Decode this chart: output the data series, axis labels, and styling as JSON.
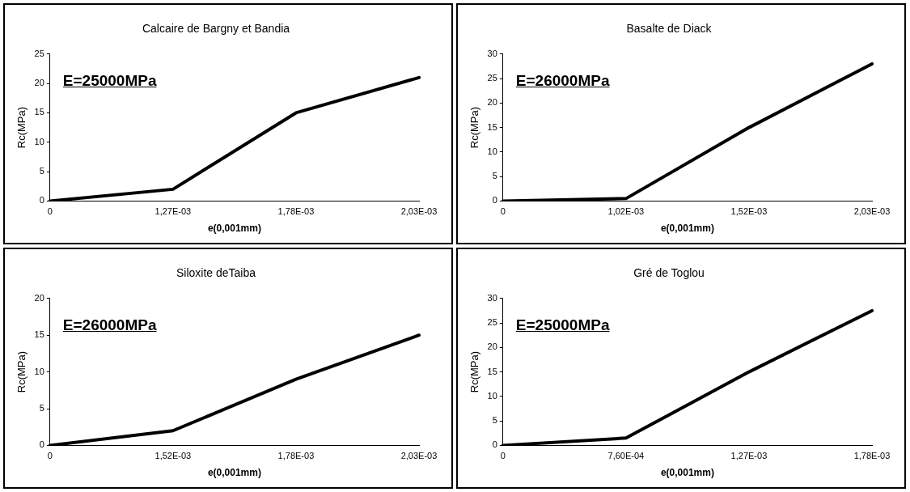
{
  "chart_data": [
    {
      "type": "line",
      "title": "Calcaire de Bargny et Bandia",
      "xlabel": "e(0,001mm)",
      "ylabel": "Rc(MPa)",
      "categories": [
        "0",
        "1,27E-03",
        "1,78E-03",
        "2,03E-03"
      ],
      "series": [
        {
          "color": "#000000",
          "values": [
            0,
            2,
            15,
            21
          ]
        }
      ],
      "ylim": [
        0,
        25
      ],
      "yticks": [
        0,
        5,
        10,
        15,
        20,
        25
      ],
      "annotations": [
        "E=25000MPa"
      ],
      "grid": false,
      "legend": false,
      "marker": "none"
    },
    {
      "type": "line",
      "title": "Basalte de Diack",
      "xlabel": "e(0,001mm)",
      "ylabel": "Rc(MPa)",
      "categories": [
        "0",
        "1,02E-03",
        "1,52E-03",
        "2,03E-03"
      ],
      "series": [
        {
          "color": "#000000",
          "values": [
            0,
            0.5,
            15,
            28
          ]
        }
      ],
      "ylim": [
        0,
        30
      ],
      "yticks": [
        0,
        5,
        10,
        15,
        20,
        25,
        30
      ],
      "annotations": [
        "E=26000MPa"
      ],
      "grid": false,
      "legend": false,
      "marker": "none"
    },
    {
      "type": "line",
      "title": "Siloxite deTaiba",
      "xlabel": "e(0,001mm)",
      "ylabel": "Rc(MPa)",
      "categories": [
        "0",
        "1,52E-03",
        "1,78E-03",
        "2,03E-03"
      ],
      "series": [
        {
          "color": "#000000",
          "values": [
            0,
            2,
            9,
            15
          ]
        }
      ],
      "ylim": [
        0,
        20
      ],
      "yticks": [
        0,
        5,
        10,
        15,
        20
      ],
      "annotations": [
        "E=26000MPa"
      ],
      "grid": false,
      "legend": false,
      "marker": "none"
    },
    {
      "type": "line",
      "title": "Gré de Toglou",
      "xlabel": "e(0,001mm)",
      "ylabel": "Rc(MPa)",
      "categories": [
        "0",
        "7,60E-04",
        "1,27E-03",
        "1,78E-03"
      ],
      "series": [
        {
          "color": "#000000",
          "values": [
            0,
            1.5,
            15,
            27.5
          ]
        }
      ],
      "ylim": [
        0,
        30
      ],
      "yticks": [
        0,
        5,
        10,
        15,
        20,
        25,
        30
      ],
      "annotations": [
        "E=25000MPa"
      ],
      "grid": false,
      "legend": false,
      "marker": "none"
    }
  ]
}
